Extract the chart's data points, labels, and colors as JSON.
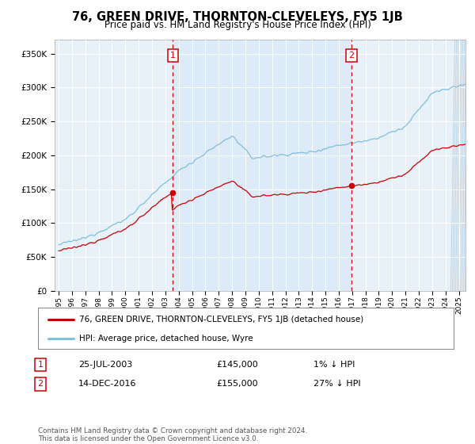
{
  "title": "76, GREEN DRIVE, THORNTON-CLEVELEYS, FY5 1JB",
  "subtitle": "Price paid vs. HM Land Registry's House Price Index (HPI)",
  "ylim": [
    0,
    370000
  ],
  "xlim_start": 1994.7,
  "xlim_end": 2025.5,
  "xticks": [
    1995,
    1996,
    1997,
    1998,
    1999,
    2000,
    2001,
    2002,
    2003,
    2004,
    2005,
    2006,
    2007,
    2008,
    2009,
    2010,
    2011,
    2012,
    2013,
    2014,
    2015,
    2016,
    2017,
    2018,
    2019,
    2020,
    2021,
    2022,
    2023,
    2024,
    2025
  ],
  "marker1_x": 2003.56,
  "marker1_y": 145000,
  "marker2_x": 2016.95,
  "marker2_y": 155000,
  "marker1_label": "25-JUL-2003",
  "marker2_label": "14-DEC-2016",
  "marker1_price": "£145,000",
  "marker2_price": "£155,000",
  "marker1_hpi": "1% ↓ HPI",
  "marker2_hpi": "27% ↓ HPI",
  "hpi_color": "#7fbfdf",
  "price_color": "#cc0000",
  "plot_bg_color": "#e8f0f8",
  "shaded_bg_color": "#ddeaf8",
  "grid_color": "#ffffff",
  "legend_label_price": "76, GREEN DRIVE, THORNTON-CLEVELEYS, FY5 1JB (detached house)",
  "legend_label_hpi": "HPI: Average price, detached house, Wyre",
  "footer": "Contains HM Land Registry data © Crown copyright and database right 2024.\nThis data is licensed under the Open Government Licence v3.0.",
  "ytick_vals": [
    0,
    50000,
    100000,
    150000,
    200000,
    250000,
    300000,
    350000
  ],
  "ytick_labels": [
    "£0",
    "£50K",
    "£100K",
    "£150K",
    "£200K",
    "£250K",
    "£300K",
    "£350K"
  ]
}
